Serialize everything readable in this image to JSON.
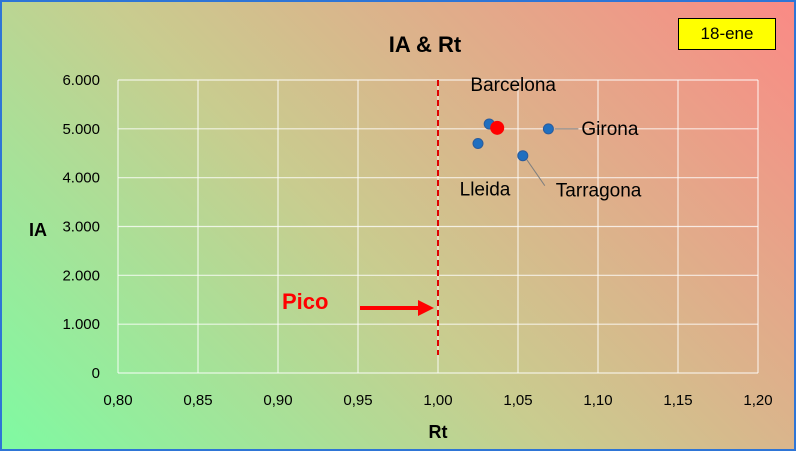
{
  "badge": {
    "date": "18-ene"
  },
  "chart_data": {
    "type": "scatter",
    "title": "IA & Rt",
    "xlabel": "Rt",
    "ylabel": "IA",
    "xlim": [
      0.8,
      1.2
    ],
    "ylim": [
      0,
      6000
    ],
    "x_ticks": [
      "0,80",
      "0,85",
      "0,90",
      "0,95",
      "1,00",
      "1,05",
      "1,10",
      "1,15",
      "1,20"
    ],
    "y_ticks": [
      "0",
      "1.000",
      "2.000",
      "3.000",
      "4.000",
      "5.000",
      "6.000"
    ],
    "grid": true,
    "points": [
      {
        "name": "Barcelona",
        "x": 1.032,
        "y": 5100,
        "color": "#1f6fc0"
      },
      {
        "name": "Girona",
        "x": 1.069,
        "y": 5000,
        "color": "#1f6fc0"
      },
      {
        "name": "Tarragona",
        "x": 1.053,
        "y": 4450,
        "color": "#1f6fc0"
      },
      {
        "name": "Lleida",
        "x": 1.025,
        "y": 4700,
        "color": "#1f6fc0"
      }
    ],
    "highlight_point": {
      "x": 1.037,
      "y": 5020,
      "color": "#ff0000"
    },
    "reference_line": {
      "x": 1.0,
      "color": "#e00000",
      "style": "dashed"
    },
    "annotation": {
      "text": "Pico",
      "color": "#ff0000"
    }
  }
}
